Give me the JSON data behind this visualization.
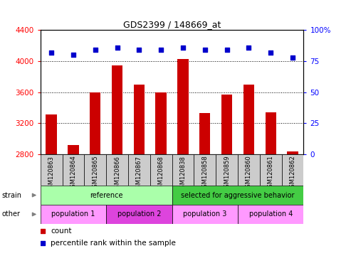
{
  "title": "GDS2399 / 148669_at",
  "samples": [
    "GSM120863",
    "GSM120864",
    "GSM120865",
    "GSM120866",
    "GSM120867",
    "GSM120868",
    "GSM120838",
    "GSM120858",
    "GSM120859",
    "GSM120860",
    "GSM120861",
    "GSM120862"
  ],
  "counts": [
    3310,
    2920,
    3600,
    3940,
    3700,
    3600,
    4030,
    3330,
    3570,
    3700,
    3340,
    2840
  ],
  "percentile_ranks": [
    82,
    80,
    84,
    86,
    84,
    84,
    86,
    84,
    84,
    86,
    82,
    78
  ],
  "ylim_left": [
    2800,
    4400
  ],
  "ylim_right": [
    0,
    100
  ],
  "yticks_left": [
    2800,
    3200,
    3600,
    4000,
    4400
  ],
  "yticks_right": [
    0,
    25,
    50,
    75,
    100
  ],
  "bar_color": "#CC0000",
  "dot_color": "#0000CC",
  "bar_bottom": 2800,
  "strain_groups": [
    {
      "label": "reference",
      "start": 0,
      "end": 6,
      "color": "#AAFFAA"
    },
    {
      "label": "selected for aggressive behavior",
      "start": 6,
      "end": 12,
      "color": "#44CC44"
    }
  ],
  "other_groups": [
    {
      "label": "population 1",
      "start": 0,
      "end": 3,
      "color": "#FF99FF"
    },
    {
      "label": "population 2",
      "start": 3,
      "end": 6,
      "color": "#DD44DD"
    },
    {
      "label": "population 3",
      "start": 6,
      "end": 9,
      "color": "#FF99FF"
    },
    {
      "label": "population 4",
      "start": 9,
      "end": 12,
      "color": "#FF99FF"
    }
  ],
  "legend_count_color": "#CC0000",
  "legend_dot_color": "#0000CC",
  "tick_bg_color": "#CCCCCC",
  "grid_color": "black",
  "right_tick_labels": [
    "0",
    "25",
    "50",
    "75",
    "100%"
  ]
}
